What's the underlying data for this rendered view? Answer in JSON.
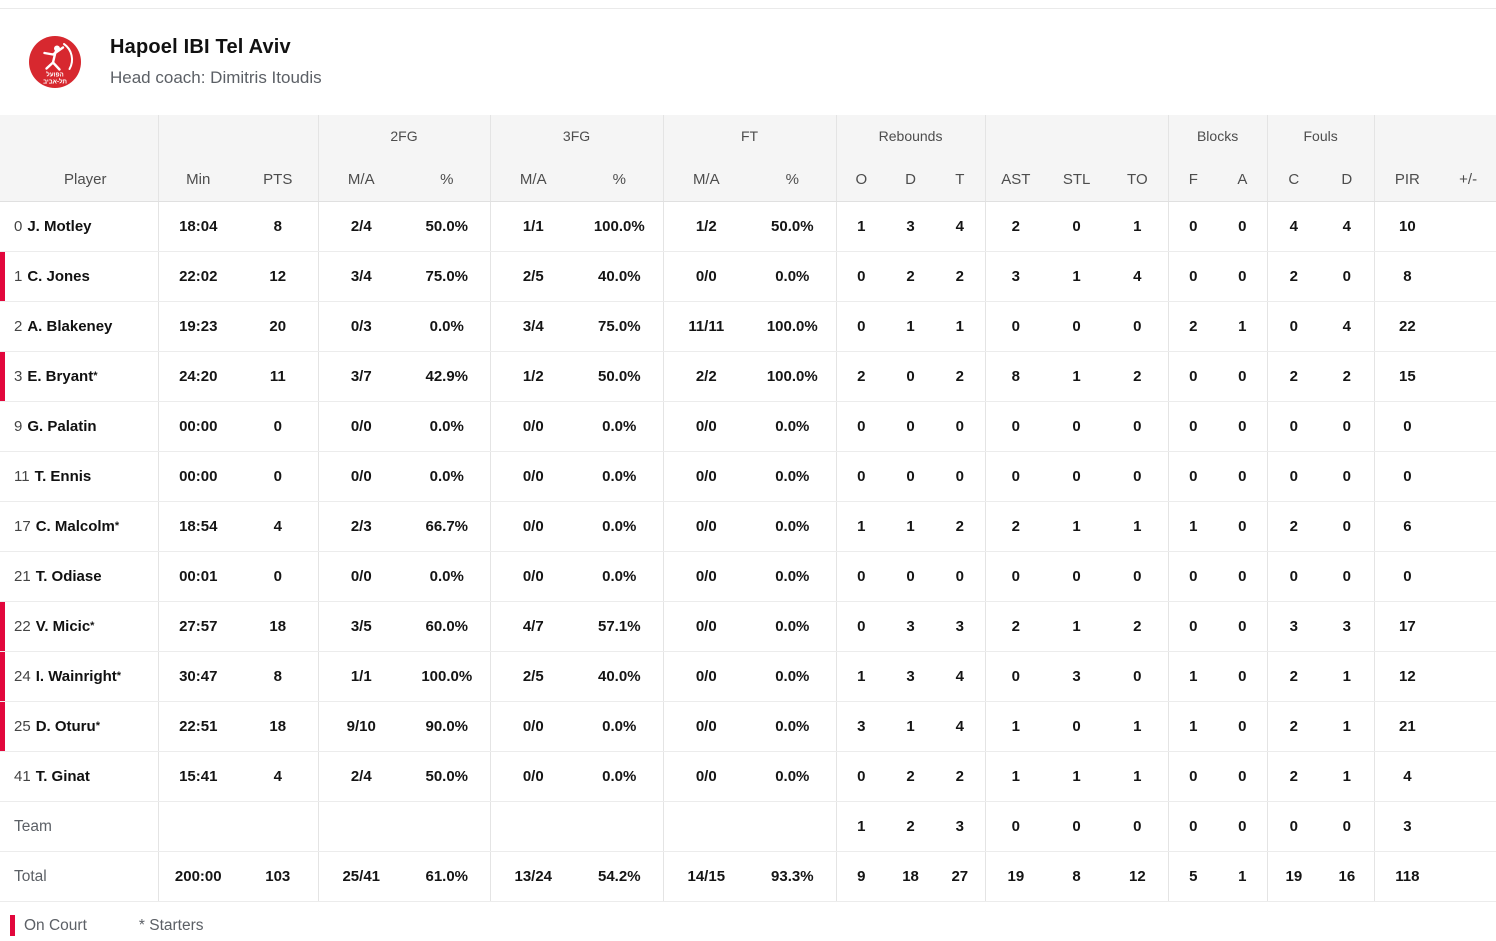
{
  "header": {
    "team_name": "Hapoel IBI Tel Aviv",
    "coach_line": "Head coach: Dimitris Itoudis",
    "logo_text_1": "הפועל",
    "logo_text_2": "תל-אביב"
  },
  "colors": {
    "accent_red": "#e2073c",
    "logo_red": "#d7282f",
    "header_bg": "#f5f5f5"
  },
  "table": {
    "groups": [
      "2FG",
      "3FG",
      "FT",
      "Rebounds",
      "Blocks",
      "Fouls"
    ],
    "columns": [
      "Player",
      "Min",
      "PTS",
      "M/A",
      "%",
      "M/A",
      "%",
      "M/A",
      "%",
      "O",
      "D",
      "T",
      "AST",
      "STL",
      "TO",
      "F",
      "A",
      "C",
      "D",
      "PIR",
      "+/-"
    ],
    "rows": [
      {
        "num": "0",
        "name": "J. Motley",
        "starter": false,
        "on_court": false,
        "min": "18:04",
        "pts": "8",
        "fg2_ma": "2/4",
        "fg2_pct": "50.0%",
        "fg3_ma": "1/1",
        "fg3_pct": "100.0%",
        "ft_ma": "1/2",
        "ft_pct": "50.0%",
        "reb_o": "1",
        "reb_d": "3",
        "reb_t": "4",
        "ast": "2",
        "stl": "0",
        "to": "1",
        "blk_f": "0",
        "blk_a": "0",
        "foul_c": "4",
        "foul_d": "4",
        "pir": "10",
        "pm": ""
      },
      {
        "num": "1",
        "name": "C. Jones",
        "starter": false,
        "on_court": true,
        "min": "22:02",
        "pts": "12",
        "fg2_ma": "3/4",
        "fg2_pct": "75.0%",
        "fg3_ma": "2/5",
        "fg3_pct": "40.0%",
        "ft_ma": "0/0",
        "ft_pct": "0.0%",
        "reb_o": "0",
        "reb_d": "2",
        "reb_t": "2",
        "ast": "3",
        "stl": "1",
        "to": "4",
        "blk_f": "0",
        "blk_a": "0",
        "foul_c": "2",
        "foul_d": "0",
        "pir": "8",
        "pm": ""
      },
      {
        "num": "2",
        "name": "A. Blakeney",
        "starter": false,
        "on_court": false,
        "min": "19:23",
        "pts": "20",
        "fg2_ma": "0/3",
        "fg2_pct": "0.0%",
        "fg3_ma": "3/4",
        "fg3_pct": "75.0%",
        "ft_ma": "11/11",
        "ft_pct": "100.0%",
        "reb_o": "0",
        "reb_d": "1",
        "reb_t": "1",
        "ast": "0",
        "stl": "0",
        "to": "0",
        "blk_f": "2",
        "blk_a": "1",
        "foul_c": "0",
        "foul_d": "4",
        "pir": "22",
        "pm": ""
      },
      {
        "num": "3",
        "name": "E. Bryant",
        "starter": true,
        "on_court": true,
        "min": "24:20",
        "pts": "11",
        "fg2_ma": "3/7",
        "fg2_pct": "42.9%",
        "fg3_ma": "1/2",
        "fg3_pct": "50.0%",
        "ft_ma": "2/2",
        "ft_pct": "100.0%",
        "reb_o": "2",
        "reb_d": "0",
        "reb_t": "2",
        "ast": "8",
        "stl": "1",
        "to": "2",
        "blk_f": "0",
        "blk_a": "0",
        "foul_c": "2",
        "foul_d": "2",
        "pir": "15",
        "pm": ""
      },
      {
        "num": "9",
        "name": "G. Palatin",
        "starter": false,
        "on_court": false,
        "min": "00:00",
        "pts": "0",
        "fg2_ma": "0/0",
        "fg2_pct": "0.0%",
        "fg3_ma": "0/0",
        "fg3_pct": "0.0%",
        "ft_ma": "0/0",
        "ft_pct": "0.0%",
        "reb_o": "0",
        "reb_d": "0",
        "reb_t": "0",
        "ast": "0",
        "stl": "0",
        "to": "0",
        "blk_f": "0",
        "blk_a": "0",
        "foul_c": "0",
        "foul_d": "0",
        "pir": "0",
        "pm": ""
      },
      {
        "num": "11",
        "name": "T. Ennis",
        "starter": false,
        "on_court": false,
        "min": "00:00",
        "pts": "0",
        "fg2_ma": "0/0",
        "fg2_pct": "0.0%",
        "fg3_ma": "0/0",
        "fg3_pct": "0.0%",
        "ft_ma": "0/0",
        "ft_pct": "0.0%",
        "reb_o": "0",
        "reb_d": "0",
        "reb_t": "0",
        "ast": "0",
        "stl": "0",
        "to": "0",
        "blk_f": "0",
        "blk_a": "0",
        "foul_c": "0",
        "foul_d": "0",
        "pir": "0",
        "pm": ""
      },
      {
        "num": "17",
        "name": "C. Malcolm",
        "starter": true,
        "on_court": false,
        "min": "18:54",
        "pts": "4",
        "fg2_ma": "2/3",
        "fg2_pct": "66.7%",
        "fg3_ma": "0/0",
        "fg3_pct": "0.0%",
        "ft_ma": "0/0",
        "ft_pct": "0.0%",
        "reb_o": "1",
        "reb_d": "1",
        "reb_t": "2",
        "ast": "2",
        "stl": "1",
        "to": "1",
        "blk_f": "1",
        "blk_a": "0",
        "foul_c": "2",
        "foul_d": "0",
        "pir": "6",
        "pm": ""
      },
      {
        "num": "21",
        "name": "T. Odiase",
        "starter": false,
        "on_court": false,
        "min": "00:01",
        "pts": "0",
        "fg2_ma": "0/0",
        "fg2_pct": "0.0%",
        "fg3_ma": "0/0",
        "fg3_pct": "0.0%",
        "ft_ma": "0/0",
        "ft_pct": "0.0%",
        "reb_o": "0",
        "reb_d": "0",
        "reb_t": "0",
        "ast": "0",
        "stl": "0",
        "to": "0",
        "blk_f": "0",
        "blk_a": "0",
        "foul_c": "0",
        "foul_d": "0",
        "pir": "0",
        "pm": ""
      },
      {
        "num": "22",
        "name": "V. Micic",
        "starter": true,
        "on_court": true,
        "min": "27:57",
        "pts": "18",
        "fg2_ma": "3/5",
        "fg2_pct": "60.0%",
        "fg3_ma": "4/7",
        "fg3_pct": "57.1%",
        "ft_ma": "0/0",
        "ft_pct": "0.0%",
        "reb_o": "0",
        "reb_d": "3",
        "reb_t": "3",
        "ast": "2",
        "stl": "1",
        "to": "2",
        "blk_f": "0",
        "blk_a": "0",
        "foul_c": "3",
        "foul_d": "3",
        "pir": "17",
        "pm": ""
      },
      {
        "num": "24",
        "name": "I. Wainright",
        "starter": true,
        "on_court": true,
        "min": "30:47",
        "pts": "8",
        "fg2_ma": "1/1",
        "fg2_pct": "100.0%",
        "fg3_ma": "2/5",
        "fg3_pct": "40.0%",
        "ft_ma": "0/0",
        "ft_pct": "0.0%",
        "reb_o": "1",
        "reb_d": "3",
        "reb_t": "4",
        "ast": "0",
        "stl": "3",
        "to": "0",
        "blk_f": "1",
        "blk_a": "0",
        "foul_c": "2",
        "foul_d": "1",
        "pir": "12",
        "pm": ""
      },
      {
        "num": "25",
        "name": "D. Oturu",
        "starter": true,
        "on_court": true,
        "min": "22:51",
        "pts": "18",
        "fg2_ma": "9/10",
        "fg2_pct": "90.0%",
        "fg3_ma": "0/0",
        "fg3_pct": "0.0%",
        "ft_ma": "0/0",
        "ft_pct": "0.0%",
        "reb_o": "3",
        "reb_d": "1",
        "reb_t": "4",
        "ast": "1",
        "stl": "0",
        "to": "1",
        "blk_f": "1",
        "blk_a": "0",
        "foul_c": "2",
        "foul_d": "1",
        "pir": "21",
        "pm": ""
      },
      {
        "num": "41",
        "name": "T. Ginat",
        "starter": false,
        "on_court": false,
        "min": "15:41",
        "pts": "4",
        "fg2_ma": "2/4",
        "fg2_pct": "50.0%",
        "fg3_ma": "0/0",
        "fg3_pct": "0.0%",
        "ft_ma": "0/0",
        "ft_pct": "0.0%",
        "reb_o": "0",
        "reb_d": "2",
        "reb_t": "2",
        "ast": "1",
        "stl": "1",
        "to": "1",
        "blk_f": "0",
        "blk_a": "0",
        "foul_c": "2",
        "foul_d": "1",
        "pir": "4",
        "pm": ""
      }
    ],
    "team_row": {
      "label": "Team",
      "min": "",
      "pts": "",
      "fg2_ma": "",
      "fg2_pct": "",
      "fg3_ma": "",
      "fg3_pct": "",
      "ft_ma": "",
      "ft_pct": "",
      "reb_o": "1",
      "reb_d": "2",
      "reb_t": "3",
      "ast": "0",
      "stl": "0",
      "to": "0",
      "blk_f": "0",
      "blk_a": "0",
      "foul_c": "0",
      "foul_d": "0",
      "pir": "3",
      "pm": ""
    },
    "total_row": {
      "label": "Total",
      "min": "200:00",
      "pts": "103",
      "fg2_ma": "25/41",
      "fg2_pct": "61.0%",
      "fg3_ma": "13/24",
      "fg3_pct": "54.2%",
      "ft_ma": "14/15",
      "ft_pct": "93.3%",
      "reb_o": "9",
      "reb_d": "18",
      "reb_t": "27",
      "ast": "19",
      "stl": "8",
      "to": "12",
      "blk_f": "5",
      "blk_a": "1",
      "foul_c": "19",
      "foul_d": "16",
      "pir": "118",
      "pm": ""
    }
  },
  "legend": {
    "on_court": "On Court",
    "starters": "* Starters"
  }
}
